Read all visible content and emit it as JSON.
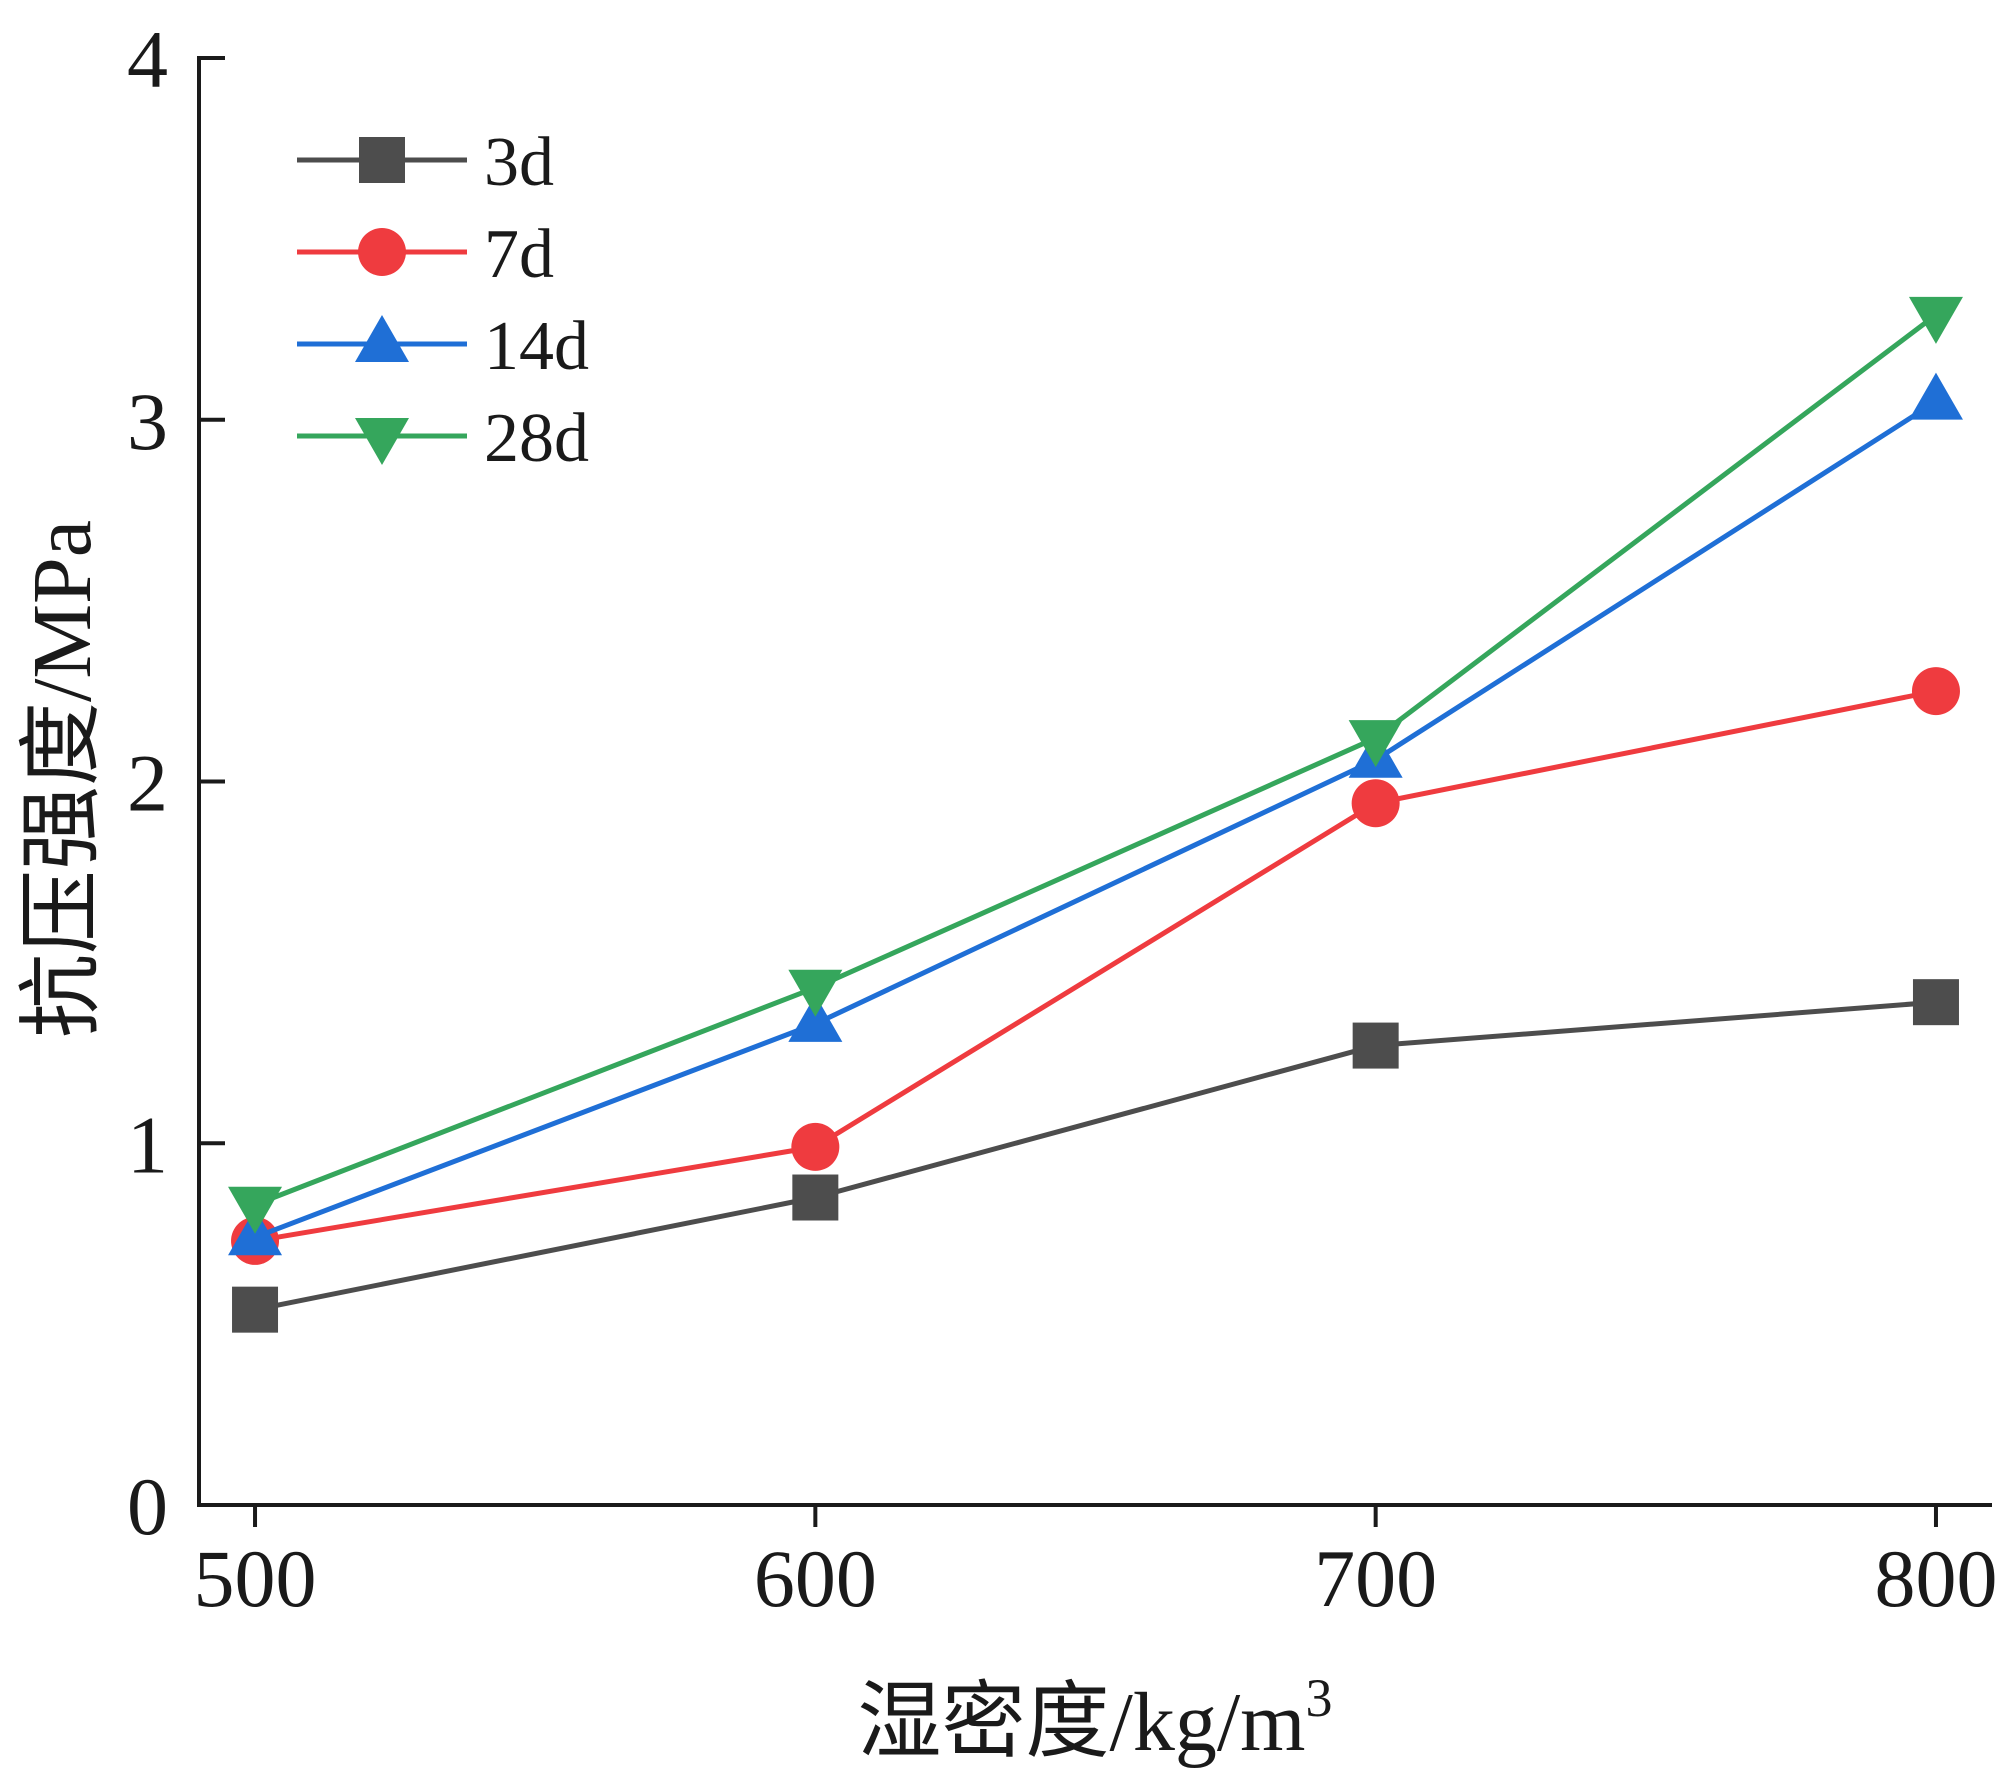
{
  "chart_data": {
    "type": "line",
    "xlabel": "湿密度/kg/m",
    "xlabel_superscript": "3",
    "ylabel": "抗压强度/MPa",
    "x": [
      500,
      600,
      700,
      800
    ],
    "x_ticks": [
      "500",
      "600",
      "700",
      "800"
    ],
    "xlim": [
      490,
      810
    ],
    "ylim": [
      0,
      4
    ],
    "y_ticks": [
      0,
      1,
      2,
      3,
      4
    ],
    "grid": false,
    "legend_position": "top-left",
    "series": [
      {
        "name": "3d",
        "color": "#4d4d4d",
        "marker": "square",
        "values": [
          0.54,
          0.85,
          1.27,
          1.39
        ]
      },
      {
        "name": "7d",
        "color": "#ef3b3f",
        "marker": "circle",
        "values": [
          0.73,
          0.99,
          1.94,
          2.25
        ]
      },
      {
        "name": "14d",
        "color": "#1f6fd6",
        "marker": "triangle-up",
        "values": [
          0.74,
          1.33,
          2.06,
          3.05
        ]
      },
      {
        "name": "28d",
        "color": "#35a65c",
        "marker": "triangle-down",
        "values": [
          0.83,
          1.43,
          2.12,
          3.29
        ]
      }
    ]
  }
}
